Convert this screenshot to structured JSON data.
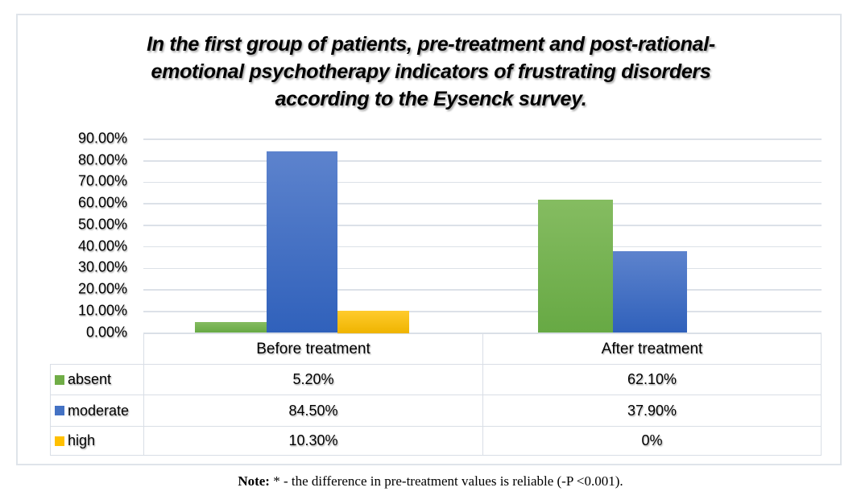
{
  "chart_data": {
    "type": "bar",
    "title": "In the first group of patients, pre-treatment and post-rational-emotional psychotherapy indicators of frustrating disorders according to the Eysenck survey.",
    "title_lines": [
      "In the first group of patients, pre-treatment and post-rational-",
      "emotional psychotherapy indicators of frustrating disorders",
      "according to the Eysenck survey."
    ],
    "categories": [
      "Before treatment",
      "After treatment"
    ],
    "series": [
      {
        "name": "absent",
        "color": "#70AD47",
        "gradient": [
          "#85BC61",
          "#67A944"
        ],
        "values": [
          5.2,
          62.1
        ],
        "labels": [
          "5.20%",
          "62.10%"
        ]
      },
      {
        "name": "moderate",
        "color": "#4472C4",
        "gradient": [
          "#5D83CD",
          "#3061BB"
        ],
        "values": [
          84.5,
          37.9
        ],
        "labels": [
          "84.50%",
          "37.90%"
        ]
      },
      {
        "name": "high",
        "color": "#FFC000",
        "gradient": [
          "#FFCB2D",
          "#EFB400"
        ],
        "values": [
          10.3,
          0
        ],
        "labels": [
          "10.30%",
          "0%"
        ]
      }
    ],
    "ylim": [
      0,
      90
    ],
    "y_tick_step": 10,
    "y_tick_labels": [
      "0.00%",
      "10.00%",
      "20.00%",
      "30.00%",
      "40.00%",
      "50.00%",
      "60.00%",
      "70.00%",
      "80.00%",
      "90.00%"
    ],
    "grid": true,
    "legend_position": "table-left"
  },
  "footnote": {
    "label": "Note:",
    "text": " * - the difference in pre-treatment values is reliable (-P <0.001)."
  }
}
